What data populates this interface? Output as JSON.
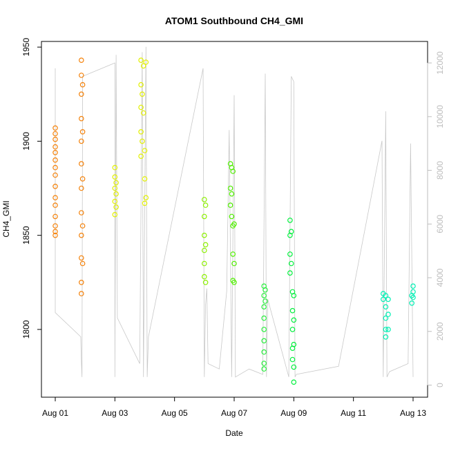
{
  "chart_data": {
    "type": "scatter",
    "title": "ATOM1 Southbound CH4_GMI",
    "xlabel": "Date",
    "ylabel": "CH4_GMI",
    "x_axis": {
      "kind": "date",
      "range": [
        "2016-07-31T20:00",
        "2016-08-13T12:00"
      ],
      "ticks": [
        {
          "value": "2016-08-01",
          "label": "Aug 01"
        },
        {
          "value": "2016-08-03",
          "label": "Aug 03"
        },
        {
          "value": "2016-08-05",
          "label": "Aug 05"
        },
        {
          "value": "2016-08-07",
          "label": "Aug 07"
        },
        {
          "value": "2016-08-09",
          "label": "Aug 09"
        },
        {
          "value": "2016-08-11",
          "label": "Aug 11"
        },
        {
          "value": "2016-08-13",
          "label": "Aug 13"
        }
      ]
    },
    "y_axis": {
      "range": [
        1764,
        1953
      ],
      "ticks": [
        1800,
        1850,
        1900,
        1950
      ]
    },
    "y2_axis": {
      "label": "",
      "color": "#bdbdbd",
      "range": [
        -450,
        12800
      ],
      "ticks": [
        0,
        2000,
        4000,
        6000,
        8000,
        10000,
        12000
      ]
    },
    "grid": false,
    "legend": "none",
    "secondary_series": {
      "color": "#c8c8c8",
      "points": [
        [
          "2016-08-01T00:00",
          11800
        ],
        [
          "2016-08-01T00:00",
          2700
        ],
        [
          "2016-08-01T20:30",
          1800
        ],
        [
          "2016-08-01T21:00",
          900
        ],
        [
          "2016-08-01T21:30",
          300
        ],
        [
          "2016-08-01T22:00",
          11500
        ],
        [
          "2016-08-03T00:00",
          12000
        ],
        [
          "2016-08-03T00:00",
          300
        ],
        [
          "2016-08-03T01:00",
          12300
        ],
        [
          "2016-08-03T02:00",
          2500
        ],
        [
          "2016-08-03T20:00",
          800
        ],
        [
          "2016-08-03T22:00",
          12400
        ],
        [
          "2016-08-03T23:00",
          300
        ],
        [
          "2016-08-04T01:00",
          12600
        ],
        [
          "2016-08-04T02:00",
          300
        ],
        [
          "2016-08-04T03:00",
          1800
        ],
        [
          "2016-08-05T23:00",
          11800
        ],
        [
          "2016-08-06T00:00",
          300
        ],
        [
          "2016-08-06T01:00",
          3000
        ],
        [
          "2016-08-06T02:00",
          3600
        ],
        [
          "2016-08-06T03:00",
          800
        ],
        [
          "2016-08-06T12:00",
          600
        ],
        [
          "2016-08-06T18:00",
          3500
        ],
        [
          "2016-08-06T20:00",
          9500
        ],
        [
          "2016-08-06T22:00",
          300
        ],
        [
          "2016-08-07T00:00",
          10800
        ],
        [
          "2016-08-07T01:00",
          300
        ],
        [
          "2016-08-07T12:00",
          600
        ],
        [
          "2016-08-07T23:00",
          400
        ],
        [
          "2016-08-08T01:00",
          11600
        ],
        [
          "2016-08-08T02:00",
          300
        ],
        [
          "2016-08-08T03:00",
          3200
        ],
        [
          "2016-08-08T20:00",
          300
        ],
        [
          "2016-08-08T22:00",
          11500
        ],
        [
          "2016-08-09T00:00",
          11300
        ],
        [
          "2016-08-09T01:00",
          300
        ],
        [
          "2016-08-09T02:00",
          400
        ],
        [
          "2016-08-10T12:00",
          700
        ],
        [
          "2016-08-11T23:00",
          9100
        ],
        [
          "2016-08-12T00:00",
          300
        ],
        [
          "2016-08-12T02:00",
          10200
        ],
        [
          "2016-08-12T03:00",
          300
        ],
        [
          "2016-08-12T05:00",
          500
        ],
        [
          "2016-08-12T20:00",
          800
        ],
        [
          "2016-08-12T22:00",
          9000
        ],
        [
          "2016-08-13T00:00",
          300
        ]
      ]
    },
    "series": [
      {
        "color": "#f5820a",
        "points": [
          [
            "2016-08-01T00:00",
            1850
          ],
          [
            "2016-08-01T00:00",
            1852
          ],
          [
            "2016-08-01T00:00",
            1855
          ],
          [
            "2016-08-01T00:00",
            1860
          ],
          [
            "2016-08-01T00:00",
            1866
          ],
          [
            "2016-08-01T00:00",
            1870
          ],
          [
            "2016-08-01T00:00",
            1876
          ],
          [
            "2016-08-01T00:00",
            1882
          ],
          [
            "2016-08-01T00:00",
            1886
          ],
          [
            "2016-08-01T00:00",
            1890
          ],
          [
            "2016-08-01T00:00",
            1894
          ],
          [
            "2016-08-01T00:00",
            1897
          ],
          [
            "2016-08-01T00:00",
            1901
          ],
          [
            "2016-08-01T00:00",
            1904
          ],
          [
            "2016-08-01T00:00",
            1907
          ],
          [
            "2016-08-01T21:00",
            1943
          ],
          [
            "2016-08-01T21:00",
            1935
          ],
          [
            "2016-08-01T21:00",
            1925
          ],
          [
            "2016-08-01T21:00",
            1912
          ],
          [
            "2016-08-01T21:00",
            1900
          ],
          [
            "2016-08-01T21:00",
            1888
          ],
          [
            "2016-08-01T21:00",
            1875
          ],
          [
            "2016-08-01T21:00",
            1862
          ],
          [
            "2016-08-01T21:00",
            1850
          ],
          [
            "2016-08-01T21:00",
            1838
          ],
          [
            "2016-08-01T21:00",
            1825
          ],
          [
            "2016-08-01T21:00",
            1819
          ],
          [
            "2016-08-01T22:00",
            1930
          ],
          [
            "2016-08-01T22:00",
            1905
          ],
          [
            "2016-08-01T22:00",
            1880
          ],
          [
            "2016-08-01T22:00",
            1855
          ],
          [
            "2016-08-01T22:00",
            1835
          ]
        ]
      },
      {
        "color": "#e2f000",
        "points": [
          [
            "2016-08-03T00:00",
            1861
          ],
          [
            "2016-08-03T00:00",
            1868
          ],
          [
            "2016-08-03T00:00",
            1875
          ],
          [
            "2016-08-03T00:00",
            1881
          ],
          [
            "2016-08-03T00:00",
            1886
          ],
          [
            "2016-08-03T01:00",
            1872
          ],
          [
            "2016-08-03T01:00",
            1865
          ],
          [
            "2016-08-03T01:00",
            1878
          ],
          [
            "2016-08-03T21:00",
            1943
          ],
          [
            "2016-08-03T21:00",
            1930
          ],
          [
            "2016-08-03T21:00",
            1918
          ],
          [
            "2016-08-03T21:00",
            1905
          ],
          [
            "2016-08-03T21:00",
            1892
          ],
          [
            "2016-08-03T22:00",
            1925
          ],
          [
            "2016-08-03T22:00",
            1900
          ],
          [
            "2016-08-03T23:00",
            1940
          ],
          [
            "2016-08-03T23:00",
            1915
          ],
          [
            "2016-08-04T00:00",
            1895
          ],
          [
            "2016-08-04T00:00",
            1880
          ],
          [
            "2016-08-04T00:00",
            1867
          ],
          [
            "2016-08-04T01:00",
            1942
          ],
          [
            "2016-08-04T01:00",
            1870
          ]
        ]
      },
      {
        "color": "#8cf000",
        "points": [
          [
            "2016-08-06T00:00",
            1869
          ],
          [
            "2016-08-06T00:00",
            1860
          ],
          [
            "2016-08-06T00:00",
            1850
          ],
          [
            "2016-08-06T00:00",
            1842
          ],
          [
            "2016-08-06T00:00",
            1835
          ],
          [
            "2016-08-06T00:00",
            1828
          ],
          [
            "2016-08-06T01:00",
            1866
          ],
          [
            "2016-08-06T01:00",
            1845
          ],
          [
            "2016-08-06T01:00",
            1825
          ]
        ]
      },
      {
        "color": "#50f000",
        "points": [
          [
            "2016-08-06T21:00",
            1888
          ],
          [
            "2016-08-06T21:00",
            1875
          ],
          [
            "2016-08-06T21:00",
            1866
          ],
          [
            "2016-08-06T22:00",
            1886
          ],
          [
            "2016-08-06T22:00",
            1872
          ],
          [
            "2016-08-06T22:00",
            1860
          ],
          [
            "2016-08-06T23:00",
            1884
          ],
          [
            "2016-08-06T23:00",
            1855
          ],
          [
            "2016-08-06T23:00",
            1840
          ],
          [
            "2016-08-06T23:00",
            1826
          ],
          [
            "2016-08-07T00:00",
            1856
          ],
          [
            "2016-08-07T00:00",
            1835
          ],
          [
            "2016-08-07T00:00",
            1825
          ]
        ]
      },
      {
        "color": "#28ee3c",
        "points": [
          [
            "2016-08-08T00:00",
            1823
          ],
          [
            "2016-08-08T00:00",
            1818
          ],
          [
            "2016-08-08T00:00",
            1812
          ],
          [
            "2016-08-08T00:00",
            1806
          ],
          [
            "2016-08-08T00:00",
            1800
          ],
          [
            "2016-08-08T00:00",
            1794
          ],
          [
            "2016-08-08T00:00",
            1788
          ],
          [
            "2016-08-08T00:00",
            1782
          ],
          [
            "2016-08-08T00:00",
            1779
          ],
          [
            "2016-08-08T01:00",
            1821
          ],
          [
            "2016-08-08T01:00",
            1815
          ]
        ]
      },
      {
        "color": "#00f03c",
        "points": [
          [
            "2016-08-08T21:00",
            1858
          ],
          [
            "2016-08-08T21:00",
            1850
          ],
          [
            "2016-08-08T21:00",
            1840
          ],
          [
            "2016-08-08T21:00",
            1830
          ],
          [
            "2016-08-08T22:00",
            1852
          ],
          [
            "2016-08-08T22:00",
            1835
          ],
          [
            "2016-08-08T23:00",
            1820
          ],
          [
            "2016-08-08T23:00",
            1810
          ],
          [
            "2016-08-08T23:00",
            1800
          ],
          [
            "2016-08-08T23:00",
            1790
          ],
          [
            "2016-08-08T23:00",
            1784
          ],
          [
            "2016-08-09T00:00",
            1818
          ],
          [
            "2016-08-09T00:00",
            1805
          ],
          [
            "2016-08-09T00:00",
            1792
          ],
          [
            "2016-08-09T00:00",
            1780
          ],
          [
            "2016-08-09T00:00",
            1772
          ]
        ]
      },
      {
        "color": "#00f0b4",
        "points": [
          [
            "2016-08-12T00:00",
            1819
          ],
          [
            "2016-08-12T00:00",
            1816
          ],
          [
            "2016-08-12T02:00",
            1818
          ],
          [
            "2016-08-12T02:00",
            1812
          ],
          [
            "2016-08-12T02:00",
            1806
          ],
          [
            "2016-08-12T02:00",
            1800
          ],
          [
            "2016-08-12T02:00",
            1796
          ],
          [
            "2016-08-12T04:00",
            1816
          ],
          [
            "2016-08-12T04:00",
            1808
          ],
          [
            "2016-08-12T04:00",
            1800
          ],
          [
            "2016-08-12T23:00",
            1818
          ],
          [
            "2016-08-12T23:00",
            1814
          ],
          [
            "2016-08-13T00:00",
            1823
          ],
          [
            "2016-08-13T00:00",
            1820
          ],
          [
            "2016-08-13T00:00",
            1817
          ]
        ]
      }
    ]
  }
}
